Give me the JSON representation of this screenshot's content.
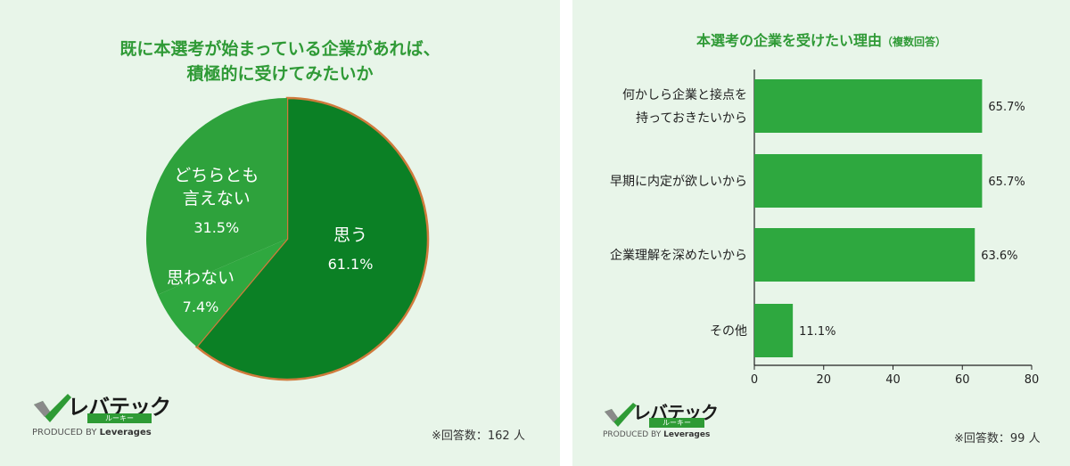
{
  "pie_chart": {
    "title_line1": "既に本選考が始まっている企業があれば、",
    "title_line2": "積極的に受けてみたいか",
    "note": "※回答数：162 人",
    "colors": {
      "slice_1": "#0b8025",
      "slice_2": "#2fa83f",
      "slice_3": "#2ea23c",
      "slice_1_outline": "#d07a3c"
    }
  },
  "bar_chart": {
    "title": "本選考の企業を受けたい理由",
    "title_sub": "（複数回答）",
    "note": "※回答数：99 人",
    "bar_color": "#2ea83f"
  },
  "logo": {
    "name": "レバテック",
    "sub": "ルーキー",
    "produced_by": "PRODUCED BY",
    "company": "Leverages"
  },
  "chart_data": [
    {
      "type": "pie",
      "slices": [
        {
          "label": "思う",
          "value": 61.1,
          "value_label": "61.1%"
        },
        {
          "label": "思わない",
          "value": 7.4,
          "value_label": "7.4%"
        },
        {
          "label_line1": "どちらとも",
          "label_line2": "言えない",
          "value": 31.5,
          "value_label": "31.5%"
        }
      ]
    },
    {
      "type": "bar",
      "orientation": "horizontal",
      "categories": [
        {
          "line1": "何かしら企業と接点を",
          "line2": "持っておきたいから"
        },
        {
          "line1": "早期に内定が欲しいから",
          "line2": ""
        },
        {
          "line1": "企業理解を深めたいから",
          "line2": ""
        },
        {
          "line1": "その他",
          "line2": ""
        }
      ],
      "values": [
        65.7,
        65.7,
        63.6,
        11.1
      ],
      "value_labels": [
        "65.7%",
        "65.7%",
        "63.6%",
        "11.1%"
      ],
      "xlim": [
        0,
        80
      ],
      "xticks": [
        "0",
        "20",
        "40",
        "60",
        "80"
      ]
    }
  ]
}
